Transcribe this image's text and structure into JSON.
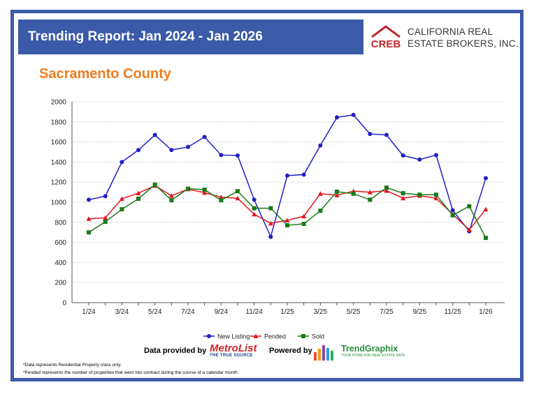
{
  "header": {
    "title": "Trending Report: Jan 2024 - Jan 2026",
    "logo_badge": "CREB",
    "logo_name_line1": "CALIFORNIA REAL",
    "logo_name_line2": "ESTATE BROKERS, INC."
  },
  "region": "Sacramento County",
  "colors": {
    "banner": "#3b5aa8",
    "frame": "#3d5aa8",
    "region": "#f07c1e",
    "logo_red": "#c0272d"
  },
  "chart_data": {
    "type": "line",
    "title": "",
    "xlabel": "",
    "ylabel": "",
    "ylim": [
      0,
      2000
    ],
    "yticks": [
      0,
      200,
      400,
      600,
      800,
      1000,
      1200,
      1400,
      1600,
      1800,
      2000
    ],
    "grid": true,
    "legend_position": "bottom",
    "x": [
      "1/24",
      "2/24",
      "3/24",
      "4/24",
      "5/24",
      "6/24",
      "7/24",
      "8/24",
      "9/24",
      "10/24",
      "11/24",
      "12/24",
      "1/25",
      "2/25",
      "3/25",
      "4/25",
      "5/25",
      "6/25",
      "7/25",
      "8/25",
      "9/25",
      "10/25",
      "11/25",
      "12/25",
      "1/26"
    ],
    "xtick_labels": [
      "1/24",
      "3/24",
      "5/24",
      "7/24",
      "9/24",
      "11/24",
      "1/25",
      "3/25",
      "5/25",
      "7/25",
      "9/25",
      "11/25",
      "1/26"
    ],
    "series": [
      {
        "name": "New Listing",
        "color": "#1f1fc8",
        "marker": "circle",
        "values": [
          1025,
          1060,
          1400,
          1520,
          1670,
          1520,
          1550,
          1650,
          1470,
          1465,
          1025,
          655,
          1265,
          1275,
          1565,
          1845,
          1870,
          1680,
          1670,
          1465,
          1425,
          1470,
          920,
          710,
          1240
        ]
      },
      {
        "name": "Pended",
        "color": "#e0141e",
        "marker": "triangle",
        "values": [
          835,
          845,
          1035,
          1090,
          1165,
          1065,
          1130,
          1095,
          1050,
          1040,
          880,
          790,
          820,
          860,
          1085,
          1070,
          1110,
          1100,
          1115,
          1040,
          1065,
          1040,
          880,
          725,
          930
        ]
      },
      {
        "name": "Sold",
        "color": "#1a7a1a",
        "marker": "square",
        "values": [
          700,
          805,
          930,
          1035,
          1175,
          1020,
          1135,
          1125,
          1020,
          1110,
          940,
          940,
          770,
          785,
          915,
          1105,
          1085,
          1025,
          1145,
          1090,
          1075,
          1075,
          870,
          960,
          645
        ]
      }
    ]
  },
  "footer": {
    "data_provided_by": "Data provided by",
    "metrolist_name": "MetroList",
    "metrolist_tagline": "THE TRUE SOURCE",
    "powered_by": "Powered by",
    "trendgraphix_name": "TrendGraphix",
    "trendgraphix_tagline": "YOUR HOME FOR REAL ESTATE DATA",
    "note1": "*Data represents Residential Property class only.",
    "note2": "*Pended represents the number of properties that went into contract during the course of a calendar month."
  }
}
